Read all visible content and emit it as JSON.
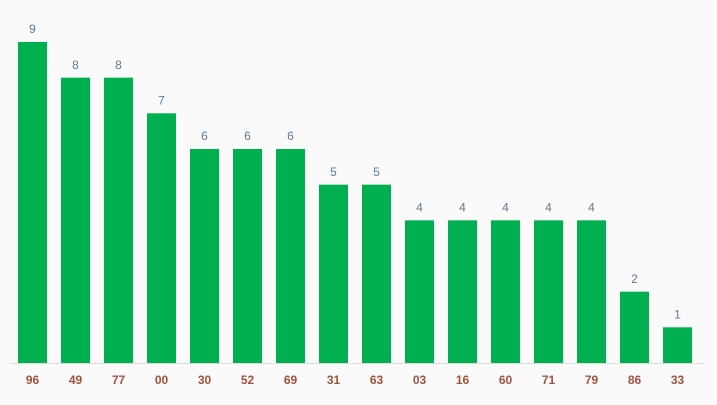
{
  "chart_data": {
    "type": "bar",
    "categories": [
      "96",
      "49",
      "77",
      "00",
      "30",
      "52",
      "69",
      "31",
      "63",
      "03",
      "16",
      "60",
      "71",
      "79",
      "86",
      "33"
    ],
    "values": [
      9,
      8,
      8,
      7,
      6,
      6,
      6,
      5,
      5,
      4,
      4,
      4,
      4,
      4,
      2,
      1
    ],
    "color": "#00b050"
  }
}
